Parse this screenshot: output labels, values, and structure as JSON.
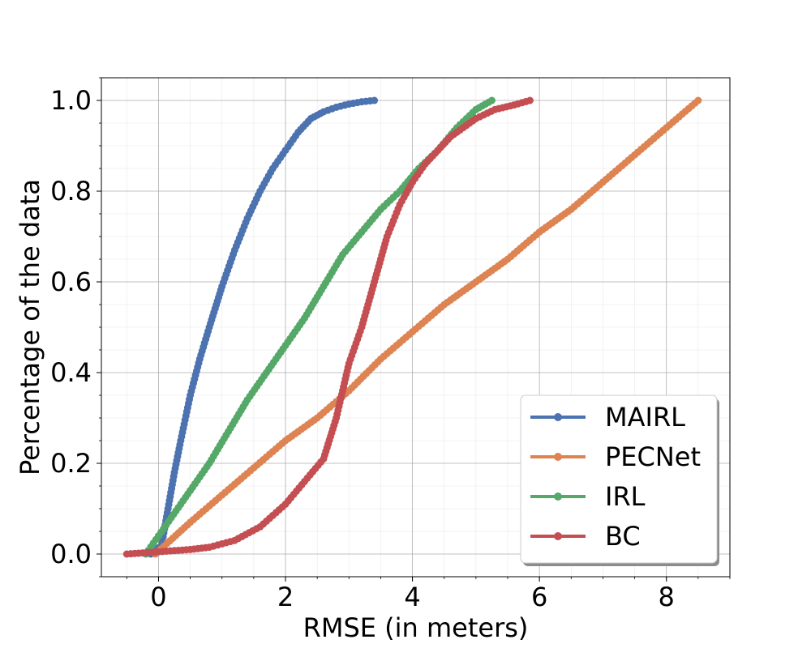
{
  "chart_data": {
    "type": "line",
    "title": "",
    "xlabel": "RMSE (in meters)",
    "ylabel": "Percentage of the data",
    "xlim": [
      -0.9,
      9.0
    ],
    "ylim": [
      -0.05,
      1.05
    ],
    "xticks": [
      0,
      2,
      4,
      6,
      8
    ],
    "xtick_labels": [
      "0",
      "2",
      "4",
      "6",
      "8"
    ],
    "yticks": [
      0.0,
      0.2,
      0.4,
      0.6,
      0.8,
      1.0
    ],
    "ytick_labels": [
      "0.0",
      "0.2",
      "0.4",
      "0.6",
      "0.8",
      "1.0"
    ],
    "grid": true,
    "minor_grid": true,
    "legend_position": "bottom-right",
    "series": [
      {
        "name": "MAIRL",
        "color": "#4c72b0",
        "x": [
          -0.12,
          0.05,
          0.15,
          0.25,
          0.35,
          0.5,
          0.65,
          0.8,
          1.0,
          1.2,
          1.4,
          1.6,
          1.8,
          2.0,
          2.2,
          2.4,
          2.6,
          2.8,
          3.0,
          3.2,
          3.4
        ],
        "y": [
          0.0,
          0.02,
          0.1,
          0.18,
          0.25,
          0.35,
          0.43,
          0.5,
          0.59,
          0.67,
          0.74,
          0.8,
          0.85,
          0.89,
          0.93,
          0.96,
          0.975,
          0.985,
          0.992,
          0.997,
          1.0
        ]
      },
      {
        "name": "PECNet",
        "color": "#dd8452",
        "x": [
          -0.05,
          0.5,
          1.0,
          1.5,
          2.0,
          2.5,
          3.0,
          3.5,
          4.0,
          4.5,
          5.0,
          5.5,
          6.0,
          6.5,
          7.0,
          7.5,
          8.0,
          8.5
        ],
        "y": [
          0.0,
          0.07,
          0.13,
          0.19,
          0.25,
          0.3,
          0.36,
          0.43,
          0.49,
          0.55,
          0.6,
          0.65,
          0.71,
          0.76,
          0.82,
          0.88,
          0.94,
          1.0
        ]
      },
      {
        "name": "IRL",
        "color": "#55a868",
        "x": [
          -0.2,
          0.0,
          0.2,
          0.5,
          0.8,
          1.1,
          1.4,
          1.7,
          2.0,
          2.3,
          2.6,
          2.9,
          3.2,
          3.5,
          3.8,
          4.1,
          4.4,
          4.7,
          5.0,
          5.25
        ],
        "y": [
          0.0,
          0.04,
          0.08,
          0.14,
          0.2,
          0.27,
          0.34,
          0.4,
          0.46,
          0.52,
          0.59,
          0.66,
          0.71,
          0.76,
          0.8,
          0.85,
          0.89,
          0.94,
          0.98,
          1.0
        ]
      },
      {
        "name": "BC",
        "color": "#c44e52",
        "x": [
          -0.5,
          0.0,
          0.5,
          0.8,
          1.2,
          1.6,
          2.0,
          2.3,
          2.6,
          2.8,
          3.0,
          3.2,
          3.4,
          3.6,
          3.8,
          4.0,
          4.2,
          4.4,
          4.6,
          4.8,
          5.0,
          5.3,
          5.6,
          5.85
        ],
        "y": [
          0.0,
          0.005,
          0.01,
          0.015,
          0.03,
          0.06,
          0.11,
          0.16,
          0.21,
          0.3,
          0.42,
          0.5,
          0.6,
          0.7,
          0.77,
          0.82,
          0.86,
          0.89,
          0.92,
          0.94,
          0.96,
          0.98,
          0.99,
          1.0
        ]
      }
    ]
  }
}
